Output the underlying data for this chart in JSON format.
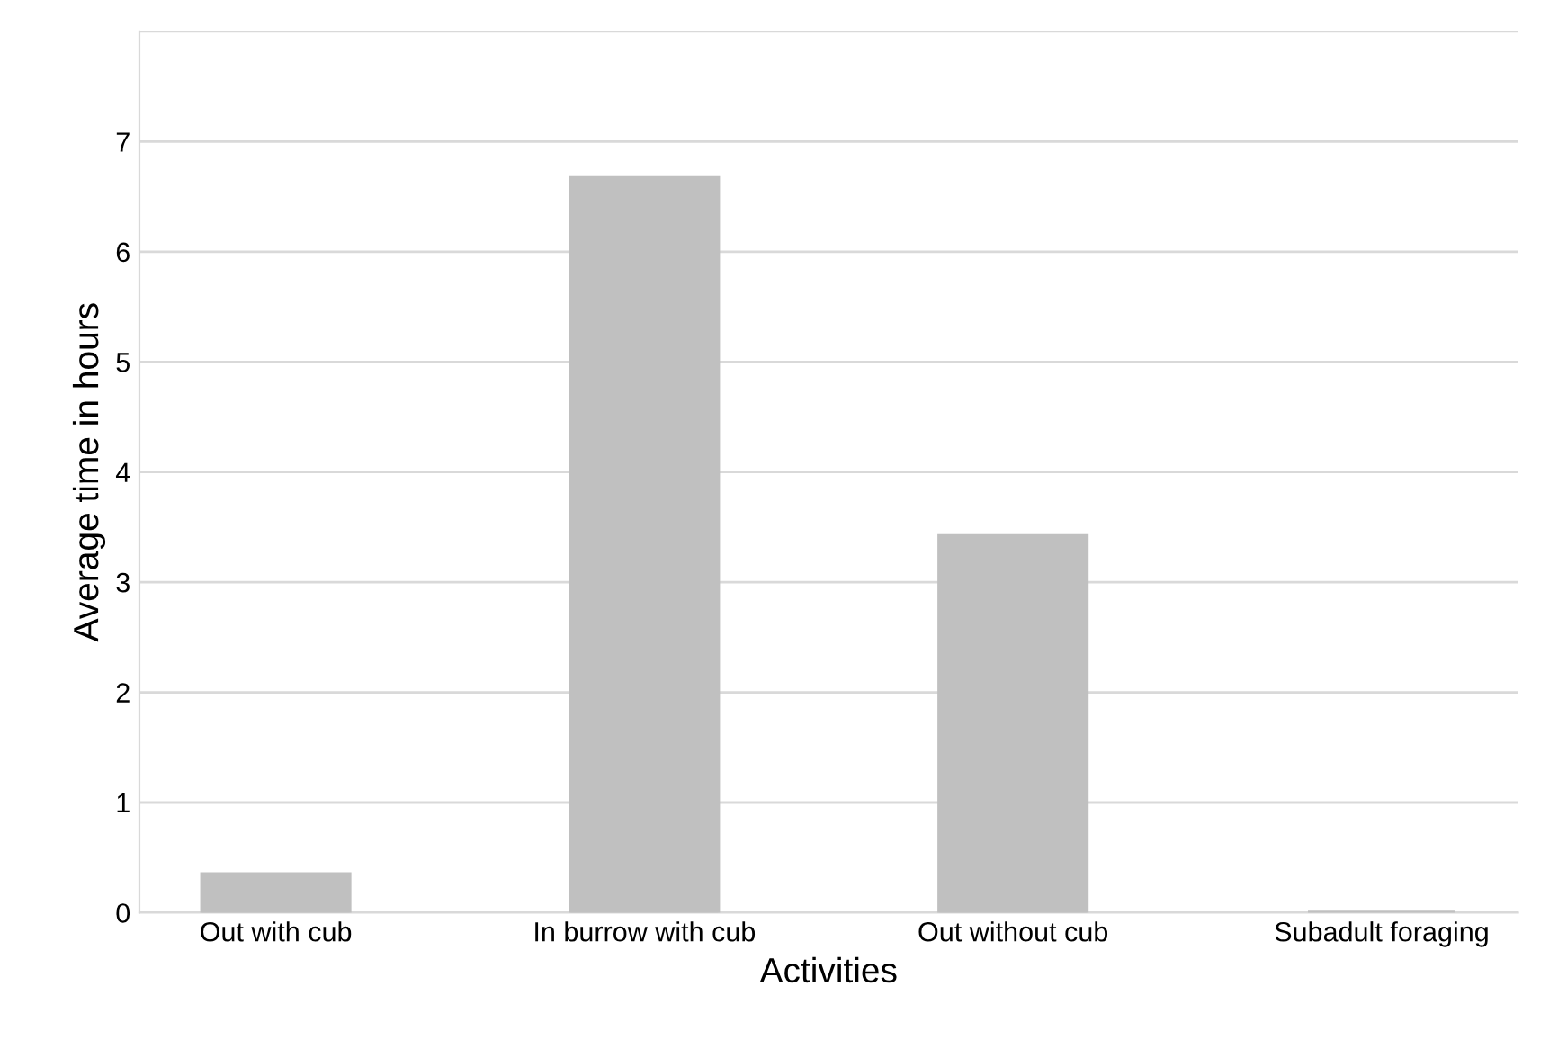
{
  "chart_data": {
    "type": "bar",
    "xlabel": "Activities",
    "ylabel": "Average time in hours",
    "categories": [
      "Out with cub",
      "In burrow with cub",
      "Out without cub",
      "Subadult foraging"
    ],
    "values": [
      0.35,
      6.67,
      3.42,
      0
    ],
    "color": "#c0c0c0",
    "ylim": [
      0,
      8
    ],
    "yticks": [
      0,
      1,
      2,
      3,
      4,
      5,
      6,
      7,
      {
        "value": 8,
        "label": null
      }
    ],
    "grid": "y"
  }
}
